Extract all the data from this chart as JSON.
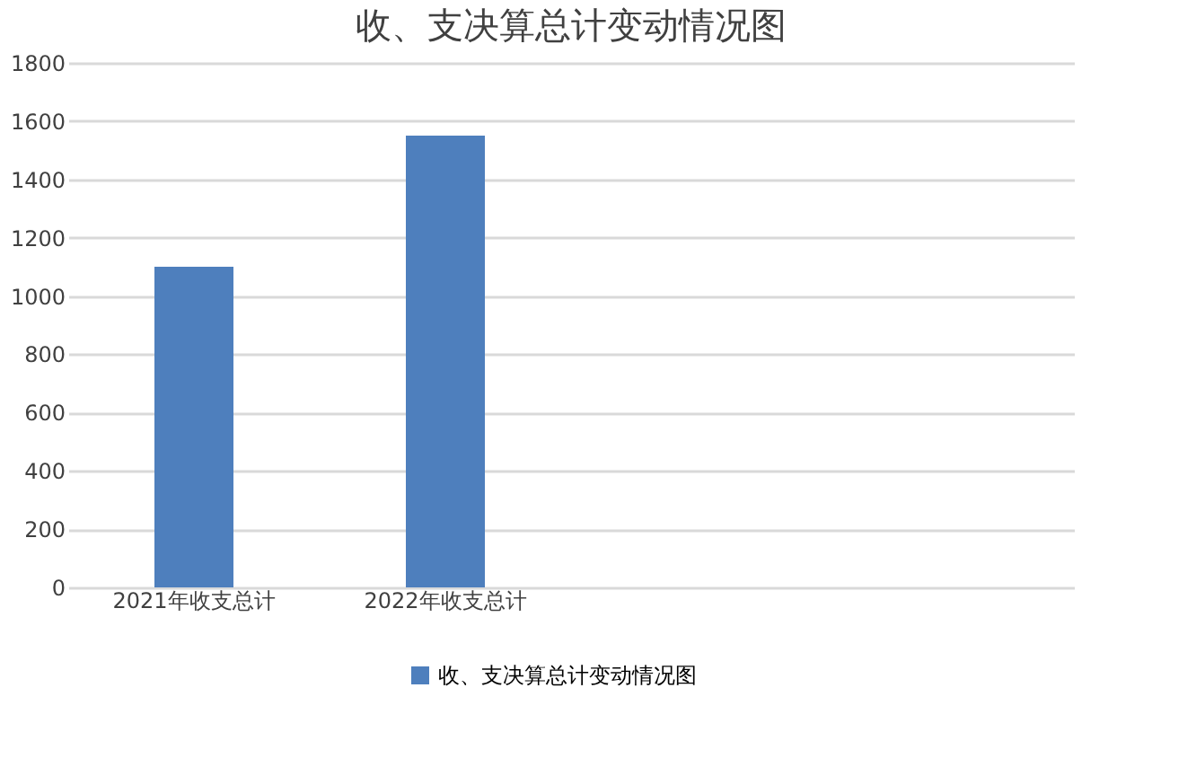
{
  "chart_data": {
    "type": "bar",
    "title": "收、支决算总计变动情况图",
    "categories": [
      "2021年收支总计",
      "2022年收支总计",
      null,
      null
    ],
    "series": [
      {
        "name": "收、支决算总计变动情况图",
        "color": "#4e7fbd",
        "values": [
          1100,
          1550,
          null,
          null
        ]
      }
    ],
    "ylim": [
      0,
      1800
    ],
    "yticks": [
      0,
      200,
      400,
      600,
      800,
      1000,
      1200,
      1400,
      1600,
      1800
    ],
    "grid": "y",
    "legend": "bottom"
  }
}
